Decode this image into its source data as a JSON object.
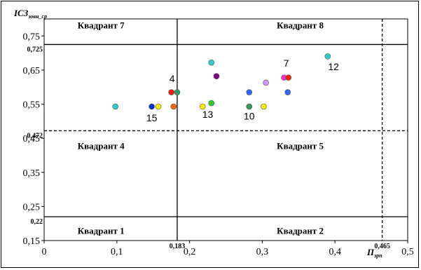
{
  "chart_data": {
    "type": "scatter",
    "ylabel": "ІСЗ",
    "ylabel_sub": "зовн_ср",
    "xlabel": "П",
    "xlabel_sub": "зрп",
    "xlim": [
      0,
      0.5
    ],
    "ylim": [
      0.15,
      0.8
    ],
    "x_ticks": [
      "0",
      "0,1",
      "0,2",
      "0,3",
      "0,4",
      "0,5"
    ],
    "y_ticks": [
      "0,15",
      "0,25",
      "0,35",
      "0,45",
      "0,55",
      "0,65",
      "0,75"
    ],
    "grid": false,
    "thresholds": {
      "vertical": [
        {
          "value": 0.183,
          "label": "0,183",
          "style": "solid"
        },
        {
          "value": 0.465,
          "label": "0,465",
          "style": "dashed"
        }
      ],
      "horizontal": [
        {
          "value": 0.22,
          "label": "0,22",
          "style": "solid"
        },
        {
          "value": 0.472,
          "label": "0,472",
          "style": "dashed"
        },
        {
          "value": 0.725,
          "label": "0,725",
          "style": "solid"
        }
      ]
    },
    "quadrants": [
      {
        "label": "Квадрант 7",
        "x": 0.046,
        "y": 0.772
      },
      {
        "label": "Квадрант 8",
        "x": 0.32,
        "y": 0.772
      },
      {
        "label": "Квадрант 4",
        "x": 0.046,
        "y": 0.418
      },
      {
        "label": "Квадрант 5",
        "x": 0.32,
        "y": 0.418
      },
      {
        "label": "Квадрант 1",
        "x": 0.046,
        "y": 0.17
      },
      {
        "label": "Квадрант 2",
        "x": 0.32,
        "y": 0.17
      }
    ],
    "points": [
      {
        "x": 0.098,
        "y": 0.543,
        "color": "#33cccc"
      },
      {
        "x": 0.148,
        "y": 0.543,
        "color": "#0033cc"
      },
      {
        "x": 0.157,
        "y": 0.543,
        "color": "#ffee00"
      },
      {
        "x": 0.178,
        "y": 0.543,
        "color": "#ff6600"
      },
      {
        "x": 0.175,
        "y": 0.585,
        "color": "#ee2211"
      },
      {
        "x": 0.183,
        "y": 0.585,
        "color": "#339966"
      },
      {
        "x": 0.218,
        "y": 0.543,
        "color": "#ffee00"
      },
      {
        "x": 0.23,
        "y": 0.553,
        "color": "#33cc33"
      },
      {
        "x": 0.23,
        "y": 0.672,
        "color": "#33cccc"
      },
      {
        "x": 0.237,
        "y": 0.632,
        "color": "#800080"
      },
      {
        "x": 0.282,
        "y": 0.585,
        "color": "#3366ff"
      },
      {
        "x": 0.282,
        "y": 0.543,
        "color": "#339966"
      },
      {
        "x": 0.302,
        "y": 0.543,
        "color": "#ffee00"
      },
      {
        "x": 0.305,
        "y": 0.613,
        "color": "#cc99ff"
      },
      {
        "x": 0.33,
        "y": 0.628,
        "color": "#ff33cc"
      },
      {
        "x": 0.336,
        "y": 0.628,
        "color": "#ee2211"
      },
      {
        "x": 0.335,
        "y": 0.585,
        "color": "#3366ff"
      },
      {
        "x": 0.39,
        "y": 0.69,
        "color": "#33cccc"
      }
    ],
    "point_labels": [
      {
        "text": "15",
        "x": 0.148,
        "y": 0.5
      },
      {
        "text": "4",
        "x": 0.176,
        "y": 0.615
      },
      {
        "text": "13",
        "x": 0.225,
        "y": 0.51
      },
      {
        "text": "10",
        "x": 0.282,
        "y": 0.505
      },
      {
        "text": "7",
        "x": 0.333,
        "y": 0.66
      },
      {
        "text": "12",
        "x": 0.398,
        "y": 0.65
      }
    ]
  }
}
